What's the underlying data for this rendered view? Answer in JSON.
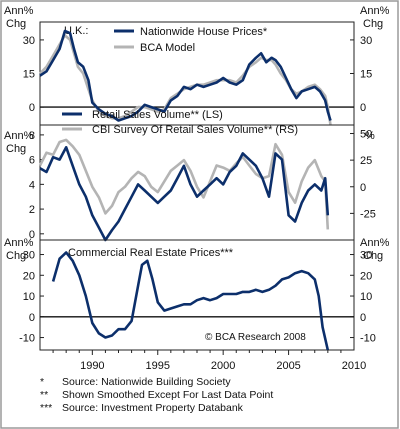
{
  "colors": {
    "navy": "#0c2f6b",
    "gray": "#b4b4b4",
    "frame": "#9a9a9a"
  },
  "x_axis": {
    "ticks": [
      "1990",
      "1995",
      "2000",
      "2005",
      "2010"
    ],
    "range": [
      1986,
      2010
    ]
  },
  "panels": [
    {
      "region_label": "U.K.:",
      "left_axis_label": [
        "Ann%",
        "Chg"
      ],
      "right_axis_label": [
        "Ann%",
        "Chg"
      ],
      "left_ticks": [
        "30",
        "15",
        "0"
      ],
      "right_ticks": [
        "30",
        "15",
        "0"
      ],
      "legend": [
        "Nationwide House Prices*",
        "BCA Model"
      ]
    },
    {
      "left_axis_label": [
        "Ann%",
        "Chg"
      ],
      "right_axis_label": [
        "%",
        ""
      ],
      "left_ticks": [
        "8",
        "6",
        "4",
        "2",
        "0"
      ],
      "right_ticks": [
        "50",
        "25",
        "0",
        "-25"
      ],
      "legend": [
        "Retail Sales Volume** (LS)",
        "CBI Survey Of Retail Sales Volume** (RS)"
      ]
    },
    {
      "left_axis_label": [
        "Ann%",
        "Chg"
      ],
      "right_axis_label": [
        "Ann%",
        "Chg"
      ],
      "left_ticks": [
        "30",
        "20",
        "10",
        "0",
        "-10"
      ],
      "right_ticks": [
        "30",
        "20",
        "10",
        "0",
        "-10"
      ],
      "title": "Commercial Real Estate Prices***",
      "credit": "© BCA Research 2008"
    }
  ],
  "footnotes": [
    {
      "mark": "*",
      "text": "Source: Nationwide Building Society"
    },
    {
      "mark": "**",
      "text": "Shown Smoothed Except For Last Data Point"
    },
    {
      "mark": "***",
      "text": "Source: Investment Property Databank"
    }
  ],
  "chart_data": [
    {
      "type": "line",
      "title": "U.K.: House prices",
      "ylim": [
        -8,
        38
      ],
      "series": [
        {
          "name": "Nationwide House Prices*",
          "color": "#0c2f6b",
          "x": [
            1986.0,
            1986.5,
            1987.0,
            1987.5,
            1987.9,
            1988.3,
            1988.6,
            1988.9,
            1989.3,
            1989.7,
            1990.0,
            1990.5,
            1991.0,
            1991.5,
            1992.0,
            1992.5,
            1993.0,
            1993.5,
            1994.0,
            1994.5,
            1995.0,
            1995.5,
            1996.0,
            1996.5,
            1997.0,
            1997.5,
            1998.0,
            1998.5,
            1999.0,
            1999.5,
            2000.0,
            2000.5,
            2001.0,
            2001.5,
            2002.0,
            2002.5,
            2002.9,
            2003.3,
            2003.7,
            2004.0,
            2004.4,
            2004.8,
            2005.2,
            2005.6,
            2006.0,
            2006.5,
            2007.0,
            2007.4,
            2007.8,
            2008.0,
            2008.2
          ],
          "values": [
            14,
            16,
            21,
            26,
            34,
            33,
            26,
            20,
            18,
            12,
            2,
            -1,
            -3,
            -4,
            -6,
            -5,
            -4,
            -2,
            1,
            0,
            -1,
            -2,
            3,
            5,
            9,
            8,
            10,
            9,
            10,
            11,
            13,
            11,
            10,
            12,
            19,
            22,
            24,
            20,
            22,
            21,
            18,
            13,
            8,
            4,
            7,
            8,
            9,
            7,
            3,
            -2,
            -6
          ]
        },
        {
          "name": "BCA Model",
          "color": "#b4b4b4",
          "x": [
            1986.0,
            1986.5,
            1987.0,
            1987.5,
            1987.9,
            1988.3,
            1988.6,
            1988.9,
            1989.3,
            1989.7,
            1990.0,
            1990.5,
            1991.0,
            1991.5,
            1992.0,
            1992.5,
            1993.0,
            1993.5,
            1994.0,
            1994.5,
            1995.0,
            1995.5,
            1996.0,
            1996.5,
            1997.0,
            1997.5,
            1998.0,
            1998.5,
            1999.0,
            1999.5,
            2000.0,
            2000.5,
            2001.0,
            2001.5,
            2002.0,
            2002.5,
            2002.9,
            2003.3,
            2003.7,
            2004.0,
            2004.4,
            2004.8,
            2005.2,
            2005.6,
            2006.0,
            2006.5,
            2007.0,
            2007.4,
            2007.8,
            2008.0,
            2008.2
          ],
          "values": [
            15,
            18,
            23,
            28,
            32,
            30,
            24,
            18,
            15,
            8,
            3,
            -2,
            -4,
            -5,
            -5,
            -4,
            -2,
            0,
            0,
            -1,
            -2,
            -1,
            4,
            6,
            8,
            9,
            10,
            10,
            11,
            12,
            12,
            12,
            11,
            14,
            18,
            20,
            22,
            21,
            21,
            19,
            15,
            12,
            8,
            6,
            7,
            9,
            10,
            8,
            5,
            0,
            -8
          ]
        }
      ]
    },
    {
      "type": "line",
      "ylim": [
        -0.5,
        8.8
      ],
      "series": [
        {
          "name": "Retail Sales Volume** (LS)",
          "axis": "left",
          "color": "#0c2f6b",
          "x": [
            1986.0,
            1986.5,
            1987.0,
            1987.5,
            1988.0,
            1988.5,
            1989.0,
            1989.5,
            1990.0,
            1990.5,
            1991.0,
            1991.5,
            1992.0,
            1992.5,
            1993.0,
            1993.5,
            1994.0,
            1994.5,
            1995.0,
            1995.5,
            1996.0,
            1996.5,
            1997.0,
            1997.5,
            1998.0,
            1998.5,
            1999.0,
            1999.5,
            2000.0,
            2000.5,
            2001.0,
            2001.5,
            2002.0,
            2002.5,
            2003.0,
            2003.5,
            2004.0,
            2004.5,
            2005.0,
            2005.5,
            2006.0,
            2006.5,
            2007.0,
            2007.5,
            2007.8,
            2008.0
          ],
          "values": [
            5.3,
            5.0,
            6.2,
            6.0,
            7.0,
            5.5,
            4.0,
            3.0,
            1.5,
            0.5,
            -0.5,
            0.3,
            1.0,
            2.0,
            3.0,
            4.0,
            3.5,
            3.0,
            2.5,
            3.0,
            3.5,
            4.5,
            5.5,
            4.0,
            3.0,
            3.5,
            4.0,
            4.5,
            4.0,
            5.0,
            5.5,
            6.5,
            6.0,
            5.5,
            4.5,
            3.0,
            6.5,
            6.0,
            1.5,
            1.0,
            2.5,
            3.5,
            4.0,
            3.5,
            4.5,
            1.5
          ]
        },
        {
          "name": "CBI Survey Of Retail Sales Volume** (RS)",
          "axis": "right",
          "color": "#b4b4b4",
          "x": [
            1986.0,
            1986.5,
            1987.0,
            1987.5,
            1988.0,
            1988.5,
            1989.0,
            1989.5,
            1990.0,
            1990.5,
            1991.0,
            1991.5,
            1992.0,
            1992.5,
            1993.0,
            1993.5,
            1994.0,
            1994.5,
            1995.0,
            1995.5,
            1996.0,
            1996.5,
            1997.0,
            1997.5,
            1998.0,
            1998.5,
            1999.0,
            1999.5,
            2000.0,
            2000.5,
            2001.0,
            2001.5,
            2002.0,
            2002.5,
            2003.0,
            2003.5,
            2004.0,
            2004.5,
            2005.0,
            2005.5,
            2006.0,
            2006.5,
            2007.0,
            2007.5,
            2007.8,
            2008.0
          ],
          "values": [
            20,
            32,
            30,
            42,
            44,
            38,
            30,
            15,
            0,
            -10,
            -25,
            -18,
            -5,
            0,
            8,
            14,
            10,
            0,
            -5,
            5,
            15,
            20,
            25,
            15,
            0,
            -10,
            5,
            20,
            18,
            15,
            22,
            28,
            20,
            12,
            8,
            10,
            40,
            30,
            -5,
            -15,
            5,
            18,
            25,
            10,
            5,
            -40
          ]
        }
      ]
    },
    {
      "type": "line",
      "title": "Commercial Real Estate Prices***",
      "ylim": [
        -16,
        37
      ],
      "series": [
        {
          "name": "Commercial Real Estate Prices***",
          "color": "#0c2f6b",
          "x": [
            1987.0,
            1987.5,
            1988.0,
            1988.5,
            1989.0,
            1989.5,
            1990.0,
            1990.5,
            1991.0,
            1991.5,
            1992.0,
            1992.5,
            1993.0,
            1993.5,
            1993.8,
            1994.2,
            1994.6,
            1995.0,
            1995.5,
            1996.0,
            1996.5,
            1997.0,
            1997.5,
            1998.0,
            1998.5,
            1999.0,
            1999.5,
            2000.0,
            2000.5,
            2001.0,
            2001.5,
            2002.0,
            2002.5,
            2003.0,
            2003.5,
            2004.0,
            2004.5,
            2005.0,
            2005.5,
            2006.0,
            2006.5,
            2007.0,
            2007.3,
            2007.6,
            2008.0
          ],
          "values": [
            17,
            28,
            31,
            27,
            20,
            10,
            -3,
            -8,
            -10,
            -9,
            -6,
            -6,
            -2,
            15,
            25,
            27,
            18,
            7,
            3,
            4,
            5,
            6,
            6,
            8,
            9,
            8,
            9,
            11,
            11,
            11,
            12,
            12,
            13,
            12,
            13,
            15,
            18,
            19,
            21,
            22,
            21,
            18,
            10,
            -5,
            -16
          ]
        }
      ]
    }
  ]
}
